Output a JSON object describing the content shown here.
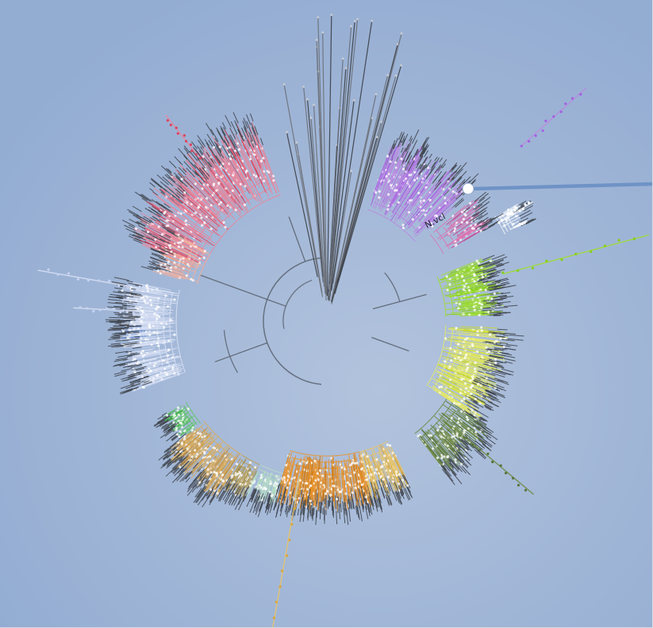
{
  "viewer": {
    "background_inner": "#b2c3dd",
    "background_outer": "#93acd2",
    "core_color": "#5b6470"
  },
  "labels": {
    "node_label": "N.vcl"
  },
  "pointer": {
    "color": "#6f93c6",
    "marker_color": "#ffffff"
  },
  "clades": [
    {
      "name": "pink",
      "color": "#e9869c",
      "accent": "#d8455f"
    },
    {
      "name": "purple",
      "color": "#b88be0",
      "accent": "#a25fe0"
    },
    {
      "name": "magenta",
      "color": "#d977b4",
      "accent": "#c04a94"
    },
    {
      "name": "white",
      "color": "#f1f5fb",
      "accent": "#ffffff"
    },
    {
      "name": "lime",
      "color": "#9fdc3a",
      "accent": "#86cf14"
    },
    {
      "name": "yellow",
      "color": "#e3e86a",
      "accent": "#c8d82a"
    },
    {
      "name": "olive",
      "color": "#6f8a45",
      "accent": "#56733a"
    },
    {
      "name": "gold",
      "color": "#e8c46a",
      "accent": "#d9a63a"
    },
    {
      "name": "orange",
      "color": "#e8942e",
      "accent": "#d27a12"
    },
    {
      "name": "mint",
      "color": "#b7ddc5",
      "accent": "#9bd0b3"
    },
    {
      "name": "khaki",
      "color": "#b9a055",
      "accent": "#9a8440"
    },
    {
      "name": "tan",
      "color": "#d7ad62",
      "accent": "#c38f3e"
    },
    {
      "name": "green",
      "color": "#5fc466",
      "accent": "#3fae47"
    },
    {
      "name": "lavender",
      "color": "#d9e1f4",
      "accent": "#c7d3ef"
    },
    {
      "name": "blue",
      "color": "#6f93d6",
      "accent": "#4f77c9"
    },
    {
      "name": "peach",
      "color": "#f0b0a0",
      "accent": "#e79a8a"
    },
    {
      "name": "gray",
      "color": "#6c7078",
      "accent": "#3a3d44"
    }
  ]
}
